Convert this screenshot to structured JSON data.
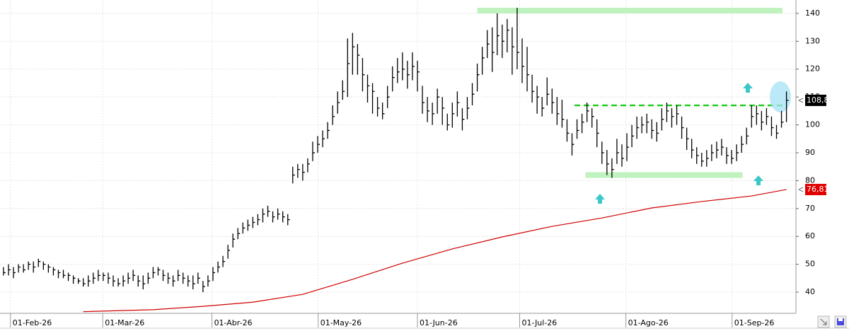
{
  "chart_data": {
    "type": "ohlc",
    "xlim": [
      -0.7,
      158.9
    ],
    "xticks": [
      {
        "value": 1.4,
        "label": "01-Feb-26"
      },
      {
        "value": 19.9,
        "label": "01-Mar-26"
      },
      {
        "value": 41.8,
        "label": "01-Abr-26"
      },
      {
        "value": 63.1,
        "label": "01-May-26"
      },
      {
        "value": 83,
        "label": "01-Jun-26"
      },
      {
        "value": 103.5,
        "label": "01-Jul-26"
      },
      {
        "value": 124.8,
        "label": "01-Ago-26"
      },
      {
        "value": 146.1,
        "label": "01-Sep-26"
      }
    ],
    "ylim": [
      32.4,
      144.8
    ],
    "yticks": [
      40,
      50,
      60,
      70,
      80,
      90,
      100,
      110,
      120,
      130,
      140
    ],
    "grid": true,
    "bars": {
      "color": "#000000",
      "high": [
        49,
        50,
        49,
        50,
        50,
        51,
        51,
        52,
        51,
        50,
        49,
        48,
        48,
        47,
        46,
        45,
        45,
        46,
        47,
        48,
        47,
        47,
        46,
        45,
        46,
        47,
        48,
        46,
        46,
        47,
        49,
        49,
        48,
        47,
        46,
        48,
        47,
        46,
        46,
        47,
        44,
        46,
        49,
        51,
        53,
        57,
        61,
        63,
        65,
        66,
        67,
        68,
        70,
        71,
        69,
        70,
        69,
        68,
        85,
        86,
        86,
        88,
        94,
        96,
        98,
        101,
        107,
        112,
        116,
        131,
        133,
        129,
        124,
        118,
        115,
        110,
        108,
        114,
        121,
        124,
        126,
        123,
        126,
        123,
        114,
        110,
        108,
        113,
        110,
        104,
        108,
        112,
        106,
        110,
        115,
        122,
        128,
        134,
        135,
        140,
        136,
        138,
        135,
        142,
        131,
        128,
        118,
        114,
        110,
        117,
        113,
        110,
        109,
        102,
        97,
        102,
        104,
        108,
        106,
        102,
        94,
        91,
        88,
        95,
        93,
        97,
        100,
        103,
        103,
        104,
        102,
        101,
        106,
        108,
        106,
        107,
        103,
        99,
        95,
        92,
        90,
        91,
        93,
        94,
        95,
        92,
        91,
        93,
        96,
        99,
        107,
        107,
        105,
        106,
        103,
        100,
        105,
        112
      ],
      "low": [
        46,
        46,
        45,
        47,
        47,
        48,
        47,
        49,
        48,
        47,
        46,
        45,
        45,
        44,
        43,
        43,
        42,
        42,
        43,
        44,
        44,
        43,
        42,
        42,
        42,
        43,
        44,
        42,
        41,
        43,
        45,
        46,
        44,
        43,
        42,
        44,
        43,
        42,
        41,
        43,
        40,
        42,
        44,
        47,
        49,
        52,
        56,
        59,
        61,
        62,
        63,
        64,
        65,
        67,
        65,
        66,
        65,
        64,
        79,
        81,
        80,
        83,
        87,
        90,
        92,
        95,
        100,
        104,
        109,
        110,
        118,
        118,
        112,
        108,
        104,
        103,
        102,
        106,
        112,
        115,
        116,
        113,
        116,
        112,
        104,
        101,
        100,
        104,
        100,
        98,
        99,
        103,
        98,
        102,
        107,
        112,
        118,
        124,
        119,
        125,
        124,
        126,
        118,
        120,
        115,
        112,
        108,
        104,
        103,
        107,
        104,
        100,
        99,
        94,
        89,
        95,
        97,
        101,
        99,
        92,
        86,
        82,
        81,
        86,
        85,
        87,
        92,
        95,
        97,
        97,
        95,
        94,
        98,
        101,
        99,
        100,
        95,
        91,
        88,
        86,
        85,
        85,
        87,
        88,
        89,
        86,
        86,
        87,
        90,
        93,
        99,
        100,
        98,
        100,
        96,
        95,
        99,
        101
      ],
      "close": [
        47,
        48,
        47,
        49,
        48,
        50,
        49,
        51,
        50,
        49,
        48,
        47,
        46,
        46,
        45,
        44,
        43,
        44,
        45,
        46,
        46,
        45,
        44,
        43,
        44,
        45,
        46,
        44,
        43,
        45,
        47,
        48,
        46,
        45,
        44,
        46,
        45,
        44,
        43,
        45,
        42,
        44,
        47,
        49,
        51,
        55,
        59,
        61,
        63,
        64,
        65,
        66,
        68,
        69,
        67,
        68,
        67,
        66,
        82,
        84,
        83,
        86,
        90,
        93,
        95,
        98,
        103,
        108,
        112,
        122,
        128,
        125,
        118,
        114,
        112,
        106,
        104,
        110,
        117,
        119,
        120,
        118,
        121,
        119,
        108,
        105,
        104,
        110,
        106,
        100,
        104,
        108,
        102,
        106,
        111,
        118,
        124,
        129,
        126,
        132,
        130,
        134,
        128,
        126,
        121,
        118,
        112,
        110,
        106,
        111,
        108,
        104,
        102,
        97,
        93,
        98,
        101,
        105,
        103,
        97,
        90,
        86,
        84,
        90,
        88,
        92,
        96,
        99,
        100,
        101,
        98,
        97,
        102,
        105,
        103,
        104,
        99,
        95,
        91,
        89,
        87,
        88,
        90,
        91,
        92,
        89,
        88,
        90,
        93,
        96,
        103,
        104,
        101,
        103,
        99,
        97,
        101,
        108.8
      ]
    },
    "moving_average": {
      "color": "#d00000",
      "x": [
        16,
        30,
        40,
        50,
        60,
        70,
        80,
        90,
        100,
        110,
        120,
        130,
        140,
        150,
        157
      ],
      "values": [
        33,
        33.7,
        34.9,
        36.4,
        39.2,
        44.6,
        50.4,
        55.5,
        59.8,
        63.6,
        66.6,
        70.2,
        72.5,
        74.5,
        76.81
      ]
    },
    "levels": [
      {
        "value": 141,
        "x": [
          95,
          156.2
        ],
        "color": "#bff2bf",
        "style": "band"
      },
      {
        "value": 82,
        "x": [
          116.7,
          148.2
        ],
        "color": "#bff2bf",
        "style": "band"
      },
      {
        "value": 107,
        "x": [
          114.5,
          156.7
        ],
        "color": "#22cc22",
        "style": "dashed"
      }
    ],
    "last_labels": [
      {
        "value": 108.8,
        "label": "108,8",
        "color": "#000000"
      },
      {
        "value": 76.81,
        "label": "76,81",
        "color": "#e00000"
      }
    ]
  }
}
